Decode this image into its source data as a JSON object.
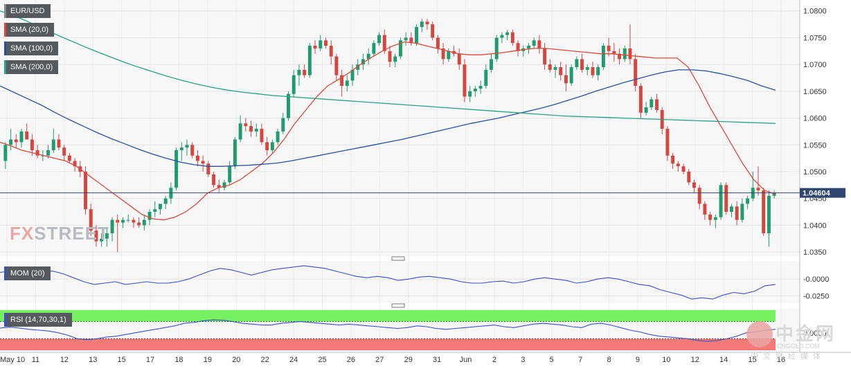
{
  "symbol": "EUR/USD",
  "indicators": {
    "sma20": "SMA (20,0)",
    "sma100": "SMA (100,0)",
    "sma200": "SMA (200,0)",
    "mom": "MOM (20)",
    "rsi": "RSI (14,70,30,1)"
  },
  "colors": {
    "up": "#1f9b6e",
    "down": "#d5463f",
    "sma20": "#e0473c",
    "sma100": "#2b4fa0",
    "sma200": "#2aa183",
    "mom": "#3a4fc8",
    "rsi": "#3a4fc8",
    "rsi_overbought_fill": "#76f060",
    "rsi_oversold_fill": "#f47a78",
    "price_line": "#2f4770"
  },
  "branding": {
    "logo_fx": "FX",
    "logo_street": "STREET",
    "watermark_cn": "中金网",
    "watermark_url": "CNGOLD.COM",
    "watermark_sub": "中文财经媒体"
  },
  "chart_data": {
    "type": "candlestick",
    "title": "EUR/USD",
    "interval": "4h",
    "last_price": "1.04604",
    "last_price_value": 1.04604,
    "y_ticks": [
      "1.0800",
      "1.0750",
      "1.0700",
      "1.0650",
      "1.0600",
      "1.0550",
      "1.0500",
      "1.0450",
      "1.0400",
      "1.0350"
    ],
    "ylim": [
      1.0345,
      1.081
    ],
    "x_labels": [
      "May 10",
      "11",
      "12",
      "13",
      "15",
      "17",
      "18",
      "19",
      "20",
      "22",
      "24",
      "25",
      "26",
      "27",
      "29",
      "31",
      "Jun",
      "2",
      "3",
      "5",
      "7",
      "8",
      "9",
      "10",
      "12",
      "14",
      "15",
      "16"
    ],
    "candles_ohlc": [
      [
        1.052,
        1.0555,
        1.0505,
        1.055
      ],
      [
        1.055,
        1.058,
        1.054,
        1.056
      ],
      [
        1.056,
        1.057,
        1.0545,
        1.0555
      ],
      [
        1.0555,
        1.058,
        1.0545,
        1.0575
      ],
      [
        1.0575,
        1.059,
        1.056,
        1.056
      ],
      [
        1.056,
        1.057,
        1.053,
        1.054
      ],
      [
        1.054,
        1.055,
        1.0525,
        1.053
      ],
      [
        1.053,
        1.054,
        1.052,
        1.053
      ],
      [
        1.053,
        1.055,
        1.0525,
        1.054
      ],
      [
        1.054,
        1.058,
        1.0535,
        1.056
      ],
      [
        1.056,
        1.057,
        1.054,
        1.0545
      ],
      [
        1.0545,
        1.055,
        1.052,
        1.053
      ],
      [
        1.053,
        1.0535,
        1.0515,
        1.052
      ],
      [
        1.052,
        1.0525,
        1.05,
        1.051
      ],
      [
        1.051,
        1.052,
        1.049,
        1.05
      ],
      [
        1.05,
        1.051,
        1.042,
        1.043
      ],
      [
        1.043,
        1.044,
        1.038,
        1.039
      ],
      [
        1.039,
        1.04,
        1.036,
        1.037
      ],
      [
        1.037,
        1.0385,
        1.036,
        1.0375
      ],
      [
        1.0375,
        1.0395,
        1.036,
        1.0385
      ],
      [
        1.0385,
        1.0415,
        1.037,
        1.041
      ],
      [
        1.041,
        1.042,
        1.035,
        1.0405
      ],
      [
        1.0405,
        1.0415,
        1.0395,
        1.041
      ],
      [
        1.041,
        1.042,
        1.0405,
        1.041
      ],
      [
        1.041,
        1.0415,
        1.0395,
        1.0405
      ],
      [
        1.0405,
        1.0415,
        1.0395,
        1.04
      ],
      [
        1.04,
        1.042,
        1.039,
        1.041
      ],
      [
        1.041,
        1.043,
        1.04,
        1.0425
      ],
      [
        1.0425,
        1.0445,
        1.0415,
        1.043
      ],
      [
        1.043,
        1.044,
        1.042,
        1.044
      ],
      [
        1.044,
        1.0455,
        1.043,
        1.045
      ],
      [
        1.045,
        1.048,
        1.044,
        1.047
      ],
      [
        1.047,
        1.0545,
        1.0465,
        1.054
      ],
      [
        1.054,
        1.0555,
        1.052,
        1.0545
      ],
      [
        1.0545,
        1.056,
        1.053,
        1.055
      ],
      [
        1.055,
        1.0555,
        1.0525,
        1.053
      ],
      [
        1.053,
        1.054,
        1.051,
        1.052
      ],
      [
        1.052,
        1.053,
        1.05,
        1.0515
      ],
      [
        1.0515,
        1.052,
        1.049,
        1.0495
      ],
      [
        1.0495,
        1.05,
        1.047,
        1.0475
      ],
      [
        1.0475,
        1.0485,
        1.046,
        1.047
      ],
      [
        1.047,
        1.0485,
        1.0465,
        1.048
      ],
      [
        1.048,
        1.052,
        1.0475,
        1.051
      ],
      [
        1.051,
        1.0565,
        1.0505,
        1.056
      ],
      [
        1.056,
        1.0605,
        1.0555,
        1.059
      ],
      [
        1.059,
        1.06,
        1.0575,
        1.0585
      ],
      [
        1.0585,
        1.0595,
        1.0565,
        1.0575
      ],
      [
        1.0575,
        1.059,
        1.0565,
        1.058
      ],
      [
        1.058,
        1.059,
        1.055,
        1.0555
      ],
      [
        1.0555,
        1.0565,
        1.053,
        1.054
      ],
      [
        1.054,
        1.056,
        1.0535,
        1.0555
      ],
      [
        1.0555,
        1.058,
        1.055,
        1.0575
      ],
      [
        1.0575,
        1.061,
        1.057,
        1.06
      ],
      [
        1.06,
        1.065,
        1.0595,
        1.0645
      ],
      [
        1.0645,
        1.069,
        1.064,
        1.068
      ],
      [
        1.068,
        1.07,
        1.066,
        1.069
      ],
      [
        1.069,
        1.07,
        1.0675,
        1.068
      ],
      [
        1.068,
        1.074,
        1.0675,
        1.0735
      ],
      [
        1.0735,
        1.0745,
        1.072,
        1.073
      ],
      [
        1.073,
        1.0755,
        1.0725,
        1.0745
      ],
      [
        1.0745,
        1.075,
        1.073,
        1.0735
      ],
      [
        1.0735,
        1.0745,
        1.07,
        1.0715
      ],
      [
        1.0715,
        1.072,
        1.067,
        1.068
      ],
      [
        1.068,
        1.069,
        1.064,
        1.066
      ],
      [
        1.066,
        1.068,
        1.065,
        1.067
      ],
      [
        1.067,
        1.07,
        1.066,
        1.069
      ],
      [
        1.069,
        1.071,
        1.068,
        1.07
      ],
      [
        1.07,
        1.072,
        1.069,
        1.071
      ],
      [
        1.071,
        1.073,
        1.07,
        1.072
      ],
      [
        1.072,
        1.0745,
        1.0715,
        1.074
      ],
      [
        1.074,
        1.076,
        1.0735,
        1.0755
      ],
      [
        1.0755,
        1.0765,
        1.072,
        1.0725
      ],
      [
        1.0725,
        1.0735,
        1.0695,
        1.0705
      ],
      [
        1.0705,
        1.072,
        1.0695,
        1.0715
      ],
      [
        1.0715,
        1.075,
        1.071,
        1.0745
      ],
      [
        1.0745,
        1.076,
        1.0735,
        1.075
      ],
      [
        1.075,
        1.076,
        1.0735,
        1.074
      ],
      [
        1.074,
        1.0775,
        1.0735,
        1.077
      ],
      [
        1.077,
        1.0785,
        1.076,
        1.078
      ],
      [
        1.078,
        1.0785,
        1.0765,
        1.0775
      ],
      [
        1.0775,
        1.078,
        1.0745,
        1.075
      ],
      [
        1.075,
        1.0755,
        1.072,
        1.073
      ],
      [
        1.073,
        1.074,
        1.07,
        1.071
      ],
      [
        1.071,
        1.073,
        1.0705,
        1.0725
      ],
      [
        1.0725,
        1.0735,
        1.0715,
        1.072
      ],
      [
        1.072,
        1.073,
        1.069,
        1.07
      ],
      [
        1.07,
        1.071,
        1.063,
        1.064
      ],
      [
        1.064,
        1.066,
        1.063,
        1.065
      ],
      [
        1.065,
        1.066,
        1.064,
        1.0655
      ],
      [
        1.0655,
        1.067,
        1.0645,
        1.066
      ],
      [
        1.066,
        1.07,
        1.0655,
        1.069
      ],
      [
        1.069,
        1.072,
        1.0685,
        1.071
      ],
      [
        1.071,
        1.0755,
        1.0705,
        1.075
      ],
      [
        1.075,
        1.076,
        1.074,
        1.0755
      ],
      [
        1.0755,
        1.0765,
        1.0745,
        1.076
      ],
      [
        1.076,
        1.0765,
        1.0735,
        1.074
      ],
      [
        1.074,
        1.0745,
        1.0715,
        1.0725
      ],
      [
        1.0725,
        1.0735,
        1.0715,
        1.073
      ],
      [
        1.073,
        1.074,
        1.072,
        1.0735
      ],
      [
        1.0735,
        1.075,
        1.073,
        1.0745
      ],
      [
        1.0745,
        1.0755,
        1.072,
        1.073
      ],
      [
        1.073,
        1.074,
        1.069,
        1.07
      ],
      [
        1.07,
        1.071,
        1.0685,
        1.069
      ],
      [
        1.069,
        1.07,
        1.0675,
        1.0695
      ],
      [
        1.0695,
        1.0705,
        1.067,
        1.068
      ],
      [
        1.068,
        1.07,
        1.065,
        1.0665
      ],
      [
        1.0665,
        1.07,
        1.066,
        1.0695
      ],
      [
        1.0695,
        1.0715,
        1.069,
        1.071
      ],
      [
        1.071,
        1.072,
        1.0685,
        1.069
      ],
      [
        1.069,
        1.07,
        1.068,
        1.0695
      ],
      [
        1.0695,
        1.0705,
        1.0675,
        1.068
      ],
      [
        1.068,
        1.07,
        1.067,
        1.0695
      ],
      [
        1.0695,
        1.074,
        1.069,
        1.0735
      ],
      [
        1.0735,
        1.075,
        1.0715,
        1.0725
      ],
      [
        1.0725,
        1.074,
        1.0705,
        1.072
      ],
      [
        1.072,
        1.073,
        1.07,
        1.071
      ],
      [
        1.071,
        1.0735,
        1.0705,
        1.073
      ],
      [
        1.073,
        1.0775,
        1.07,
        1.071
      ],
      [
        1.071,
        1.072,
        1.065,
        1.066
      ],
      [
        1.066,
        1.0665,
        1.06,
        1.061
      ],
      [
        1.061,
        1.063,
        1.0605,
        1.062
      ],
      [
        1.062,
        1.064,
        1.0615,
        1.0635
      ],
      [
        1.0635,
        1.0645,
        1.061,
        1.0615
      ],
      [
        1.0615,
        1.062,
        1.057,
        1.058
      ],
      [
        1.058,
        1.0585,
        1.052,
        1.053
      ],
      [
        1.053,
        1.0535,
        1.0505,
        1.0515
      ],
      [
        1.0515,
        1.052,
        1.05,
        1.051
      ],
      [
        1.051,
        1.0515,
        1.0495,
        1.05
      ],
      [
        1.05,
        1.0505,
        1.0475,
        1.048
      ],
      [
        1.048,
        1.0485,
        1.046,
        1.047
      ],
      [
        1.047,
        1.0475,
        1.043,
        1.044
      ],
      [
        1.044,
        1.0445,
        1.041,
        1.042
      ],
      [
        1.042,
        1.0425,
        1.04,
        1.041
      ],
      [
        1.041,
        1.042,
        1.0395,
        1.0415
      ],
      [
        1.0415,
        1.048,
        1.041,
        1.0475
      ],
      [
        1.0475,
        1.048,
        1.042,
        1.0425
      ],
      [
        1.0425,
        1.044,
        1.0415,
        1.0435
      ],
      [
        1.0435,
        1.0445,
        1.04,
        1.041
      ],
      [
        1.041,
        1.045,
        1.0405,
        1.044
      ],
      [
        1.044,
        1.0455,
        1.043,
        1.045
      ],
      [
        1.045,
        1.05,
        1.0445,
        1.047
      ],
      [
        1.047,
        1.051,
        1.0455,
        1.0465
      ],
      [
        1.0465,
        1.047,
        1.038,
        1.0385
      ],
      [
        1.0385,
        1.0465,
        1.036,
        1.0455
      ],
      [
        1.0455,
        1.0465,
        1.045,
        1.046
      ]
    ],
    "series": [
      {
        "name": "SMA (20,0)",
        "values": [
          1.0555,
          1.0548,
          1.054,
          1.0535,
          1.053,
          1.0525,
          1.052,
          1.051,
          1.0495,
          1.048,
          1.0465,
          1.045,
          1.0435,
          1.042,
          1.0412,
          1.041,
          1.0415,
          1.0425,
          1.044,
          1.046,
          1.047,
          1.0475,
          1.0485,
          1.05,
          1.0515,
          1.0535,
          1.056,
          1.059,
          1.0615,
          1.064,
          1.066,
          1.0672,
          1.0685,
          1.07,
          1.0713,
          1.0725,
          1.0735,
          1.0742,
          1.074,
          1.0735,
          1.073,
          1.0725,
          1.072,
          1.0718,
          1.0718,
          1.072,
          1.0722,
          1.0725,
          1.0728,
          1.073,
          1.073,
          1.0728,
          1.0726,
          1.0724,
          1.0722,
          1.072,
          1.072,
          1.0718,
          1.0716,
          1.0714,
          1.0712,
          1.0712,
          1.0712,
          1.0695,
          1.066,
          1.062,
          1.0585,
          1.055,
          1.0515,
          1.0485,
          1.0465,
          1.0458
        ]
      },
      {
        "name": "SMA (100,0)",
        "values": [
          1.066,
          1.0648,
          1.0636,
          1.0624,
          1.061,
          1.0597,
          1.0585,
          1.0573,
          1.0562,
          1.0552,
          1.0542,
          1.0533,
          1.0525,
          1.0518,
          1.0513,
          1.051,
          1.051,
          1.0511,
          1.0512,
          1.0514,
          1.0516,
          1.052,
          1.0525,
          1.053,
          1.0535,
          1.054,
          1.0545,
          1.055,
          1.0555,
          1.056,
          1.0566,
          1.0572,
          1.0578,
          1.0584,
          1.059,
          1.0595,
          1.06,
          1.0606,
          1.0612,
          1.0618,
          1.0625,
          1.0633,
          1.0641,
          1.065,
          1.0658,
          1.0666,
          1.0673,
          1.068,
          1.0686,
          1.069,
          1.069,
          1.0688,
          1.0683,
          1.0677,
          1.067,
          1.066,
          1.0652
        ]
      },
      {
        "name": "SMA (200,0)",
        "values": [
          1.08,
          1.079,
          1.0778,
          1.0765,
          1.0752,
          1.074,
          1.0728,
          1.0717,
          1.0706,
          1.0696,
          1.0687,
          1.0678,
          1.067,
          1.0663,
          1.0657,
          1.0652,
          1.0648,
          1.0645,
          1.0642,
          1.064,
          1.0638,
          1.0636,
          1.0634,
          1.0632,
          1.063,
          1.0628,
          1.0626,
          1.0624,
          1.0622,
          1.062,
          1.0618,
          1.0616,
          1.0614,
          1.0612,
          1.061,
          1.0608,
          1.0606,
          1.0604,
          1.0603,
          1.0602,
          1.0601,
          1.06,
          1.0599,
          1.0598,
          1.0597,
          1.0596,
          1.0595,
          1.0594,
          1.0593,
          1.0592,
          1.0591,
          1.059
        ]
      }
    ],
    "mom": {
      "name": "MOM (20)",
      "y_ticks": [
        "-0.0000",
        "-0.0250"
      ],
      "ylim": [
        -0.034,
        0.024
      ],
      "values": [
        0.01,
        0.012,
        0.008,
        0.006,
        0.01,
        0.012,
        0.008,
        0.002,
        -0.004,
        -0.008,
        -0.006,
        -0.004,
        -0.008,
        -0.006,
        -0.004,
        -0.006,
        -0.006,
        -0.004,
        0.0,
        0.006,
        0.012,
        0.016,
        0.014,
        0.01,
        0.006,
        0.01,
        0.014,
        0.016,
        0.018,
        0.02,
        0.018,
        0.016,
        0.012,
        0.008,
        0.004,
        0.002,
        0.004,
        0.002,
        -0.002,
        0.0,
        0.003,
        0.004,
        0.002,
        0.0,
        -0.004,
        -0.006,
        -0.006,
        -0.004,
        -0.003,
        -0.006,
        -0.004,
        0.0,
        0.002,
        0.0,
        -0.002,
        -0.006,
        -0.004,
        0.0,
        0.002,
        0.0,
        -0.004,
        -0.008,
        -0.01,
        -0.016,
        -0.02,
        -0.024,
        -0.03,
        -0.028,
        -0.03,
        -0.024,
        -0.02,
        -0.022,
        -0.018,
        -0.01,
        -0.008
      ]
    },
    "rsi": {
      "name": "RSI (14,70,30,1)",
      "overbought": 70,
      "oversold": 30,
      "ylim": [
        0,
        100
      ],
      "y_tick_labels": [
        "0.0000"
      ],
      "values": [
        55,
        57,
        55,
        52,
        50,
        48,
        44,
        38,
        30,
        28,
        30,
        34,
        36,
        40,
        44,
        48,
        52,
        56,
        60,
        66,
        68,
        72,
        74,
        73,
        70,
        66,
        64,
        62,
        62,
        66,
        68,
        70,
        68,
        66,
        64,
        62,
        64,
        62,
        60,
        58,
        56,
        54,
        56,
        60,
        58,
        54,
        52,
        54,
        56,
        58,
        60,
        62,
        58,
        56,
        60,
        64,
        66,
        64,
        62,
        58,
        56,
        64,
        66,
        62,
        56,
        50,
        46,
        40,
        36,
        34,
        32,
        30,
        26,
        24,
        26,
        30,
        36,
        44,
        46,
        50,
        52
      ]
    }
  }
}
